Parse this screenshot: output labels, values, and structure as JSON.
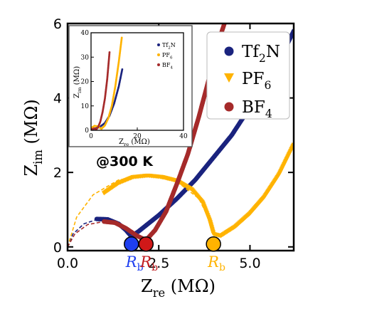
{
  "chart_data": [
    {
      "type": "scatter",
      "title": "",
      "xlabel_main": "Z",
      "xlabel_sub": "re",
      "xlabel_unit": " (MΩ)",
      "ylabel_main": "Z",
      "ylabel_sub": "im",
      "ylabel_unit": " (MΩ)",
      "xlim": [
        0,
        6.2
      ],
      "ylim": [
        -0.1,
        6
      ],
      "xticks": [
        {
          "v": 0,
          "label": "0.0"
        },
        {
          "v": 2.5,
          "label": "2.5"
        },
        {
          "v": 5,
          "label": "5.0"
        }
      ],
      "yticks": [
        {
          "v": 0,
          "label": "0"
        },
        {
          "v": 2,
          "label": "2"
        },
        {
          "v": 4,
          "label": "4"
        },
        {
          "v": 6,
          "label": "6"
        }
      ],
      "annotation": "@300 K",
      "legend_position": "top-right",
      "rb_label_main": "R",
      "rb_label_sub": "b",
      "series": [
        {
          "name_main": "Tf",
          "name_sub": "2",
          "name_tail": "N",
          "color": "#1a237e",
          "marker": "circle",
          "rb": 1.75,
          "fit": [
            [
              0,
              0
            ],
            [
              0.15,
              0.35
            ],
            [
              0.45,
              0.62
            ],
            [
              0.85,
              0.75
            ],
            [
              1.3,
              0.7
            ],
            [
              1.65,
              0.42
            ],
            [
              1.75,
              0.05
            ]
          ],
          "data": [
            [
              0.8,
              0.75
            ],
            [
              1.1,
              0.74
            ],
            [
              1.4,
              0.62
            ],
            [
              1.6,
              0.45
            ],
            [
              1.75,
              0.28
            ],
            [
              1.95,
              0.42
            ],
            [
              2.5,
              0.85
            ],
            [
              3.0,
              1.3
            ],
            [
              3.5,
              1.8
            ],
            [
              4.0,
              2.4
            ],
            [
              4.5,
              3.0
            ],
            [
              5.0,
              3.75
            ],
            [
              5.5,
              4.5
            ],
            [
              6.0,
              5.4
            ],
            [
              6.2,
              5.8
            ]
          ]
        },
        {
          "name_main": "PF",
          "name_sub": "6",
          "name_tail": "",
          "color": "#ffb300",
          "marker": "triangle",
          "rb": 4.0,
          "fit": [
            [
              0,
              0
            ],
            [
              0.25,
              0.8
            ],
            [
              0.7,
              1.4
            ],
            [
              1.4,
              1.8
            ],
            [
              2.2,
              1.92
            ],
            [
              3.0,
              1.75
            ],
            [
              3.6,
              1.3
            ],
            [
              3.95,
              0.6
            ],
            [
              4.0,
              0.1
            ]
          ],
          "data": [
            [
              1.0,
              1.45
            ],
            [
              1.4,
              1.72
            ],
            [
              1.8,
              1.88
            ],
            [
              2.2,
              1.92
            ],
            [
              2.6,
              1.88
            ],
            [
              3.0,
              1.78
            ],
            [
              3.4,
              1.55
            ],
            [
              3.7,
              1.2
            ],
            [
              3.9,
              0.7
            ],
            [
              4.0,
              0.35
            ],
            [
              4.2,
              0.3
            ],
            [
              4.6,
              0.55
            ],
            [
              5.0,
              0.9
            ],
            [
              5.4,
              1.35
            ],
            [
              5.8,
              1.95
            ],
            [
              6.2,
              2.75
            ]
          ]
        },
        {
          "name_main": "BF",
          "name_sub": "4",
          "name_tail": "",
          "color": "#a52a2a",
          "marker": "circle",
          "rb": 2.15,
          "fit": [
            [
              0,
              0
            ],
            [
              0.2,
              0.35
            ],
            [
              0.55,
              0.6
            ],
            [
              1.0,
              0.68
            ],
            [
              1.5,
              0.6
            ],
            [
              1.85,
              0.35
            ],
            [
              2.15,
              0.05
            ]
          ],
          "data": [
            [
              1.0,
              0.68
            ],
            [
              1.3,
              0.65
            ],
            [
              1.6,
              0.5
            ],
            [
              1.9,
              0.3
            ],
            [
              2.15,
              0.18
            ],
            [
              2.4,
              0.45
            ],
            [
              2.7,
              0.95
            ],
            [
              3.0,
              1.7
            ],
            [
              3.3,
              2.5
            ],
            [
              3.6,
              3.5
            ],
            [
              3.9,
              4.6
            ],
            [
              4.2,
              5.7
            ],
            [
              4.3,
              6.0
            ]
          ]
        }
      ]
    },
    {
      "type": "scatter",
      "title": "",
      "xlabel_main": "Z",
      "xlabel_sub": "re",
      "xlabel_unit": " (MΩ)",
      "ylabel_main": "Z",
      "ylabel_sub": "im",
      "ylabel_unit": " (MΩ)",
      "xlim": [
        0,
        40
      ],
      "ylim": [
        0,
        40
      ],
      "xticks": [
        {
          "v": 0,
          "label": "0"
        },
        {
          "v": 20,
          "label": "20"
        },
        {
          "v": 40,
          "label": "40"
        }
      ],
      "yticks": [
        {
          "v": 0,
          "label": "0"
        },
        {
          "v": 10,
          "label": "10"
        },
        {
          "v": 20,
          "label": "20"
        },
        {
          "v": 30,
          "label": "30"
        },
        {
          "v": 40,
          "label": "40"
        }
      ],
      "legend_position": "top-right",
      "series": [
        {
          "name_main": "Tf",
          "name_sub": "2",
          "name_tail": "N",
          "color": "#1a237e",
          "data": [
            [
              0.5,
              0.4
            ],
            [
              2,
              0.8
            ],
            [
              4,
              1.5
            ],
            [
              6,
              3
            ],
            [
              8,
              6
            ],
            [
              10,
              11
            ],
            [
              12,
              18
            ],
            [
              13.5,
              25
            ]
          ]
        },
        {
          "name_main": "PF",
          "name_sub": "6",
          "name_tail": "",
          "color": "#ffb300",
          "data": [
            [
              0.5,
              1.2
            ],
            [
              1.5,
              1.8
            ],
            [
              3,
              1.6
            ],
            [
              4.5,
              0.6
            ],
            [
              6,
              2
            ],
            [
              7.5,
              5
            ],
            [
              9,
              10
            ],
            [
              10.5,
              18
            ],
            [
              12,
              28
            ],
            [
              13.3,
              38
            ]
          ]
        },
        {
          "name_main": "BF",
          "name_sub": "4",
          "name_tail": "",
          "color": "#a52a2a",
          "data": [
            [
              0.5,
              0.5
            ],
            [
              1.5,
              0.8
            ],
            [
              2.2,
              0.3
            ],
            [
              3,
              1.2
            ],
            [
              4,
              3.5
            ],
            [
              5,
              7.5
            ],
            [
              6,
              13
            ],
            [
              7,
              21
            ],
            [
              8,
              32
            ]
          ]
        }
      ]
    }
  ]
}
